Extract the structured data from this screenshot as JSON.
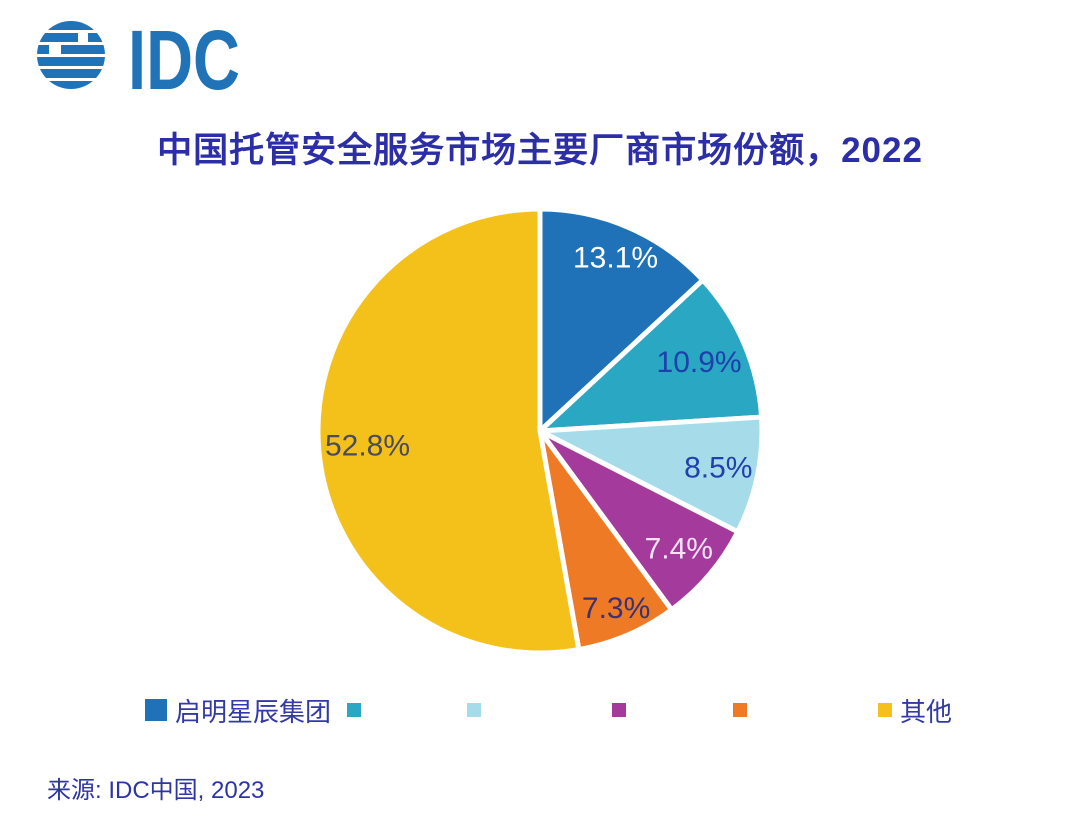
{
  "logo": {
    "text": "IDC",
    "color": "#2173B8"
  },
  "title": {
    "text": "中国托管安全服务市场主要厂商市场份额，2022",
    "color": "#2C2EA8"
  },
  "source": {
    "text": "来源: IDC中国, 2023"
  },
  "legend": {
    "items": [
      {
        "label": "启明星辰集团",
        "color": "#1F72B8",
        "emphasized": true
      },
      {
        "label": "",
        "color": "#29A7C3",
        "emphasized": false
      },
      {
        "label": "",
        "color": "#A6DCEA",
        "emphasized": false
      },
      {
        "label": "",
        "color": "#A43B9C",
        "emphasized": false
      },
      {
        "label": "",
        "color": "#EF7A26",
        "emphasized": false
      },
      {
        "label": "其他",
        "color": "#F3C119",
        "emphasized": false
      }
    ]
  },
  "chart_data": {
    "type": "pie",
    "title": "中国托管安全服务市场主要厂商市场份额，2022",
    "categories": [
      "启明星辰集团",
      "",
      "",
      "",
      "",
      "其他"
    ],
    "values": [
      13.1,
      10.9,
      8.5,
      7.4,
      7.3,
      52.8
    ],
    "data_labels": [
      "13.1%",
      "10.9%",
      "8.5%",
      "7.4%",
      "7.3%",
      "52.8%"
    ],
    "colors": [
      "#1F72B8",
      "#29A7C3",
      "#A6DCEA",
      "#A43B9C",
      "#EF7A26",
      "#F3C119"
    ],
    "data_label_colors": [
      "#FFFFFF",
      "#1E40AA",
      "#2240AC",
      "#F3E3F6",
      "#3A3274",
      "#4A4B5F"
    ],
    "data_label_radius": [
      0.85,
      0.78,
      0.82,
      0.82,
      0.87,
      0.78
    ],
    "start_angle_deg": 0,
    "direction": "clockwise",
    "slice_gap_color": "#FFFFFF",
    "legend_position": "bottom",
    "source": "来源: IDC中国, 2023"
  }
}
